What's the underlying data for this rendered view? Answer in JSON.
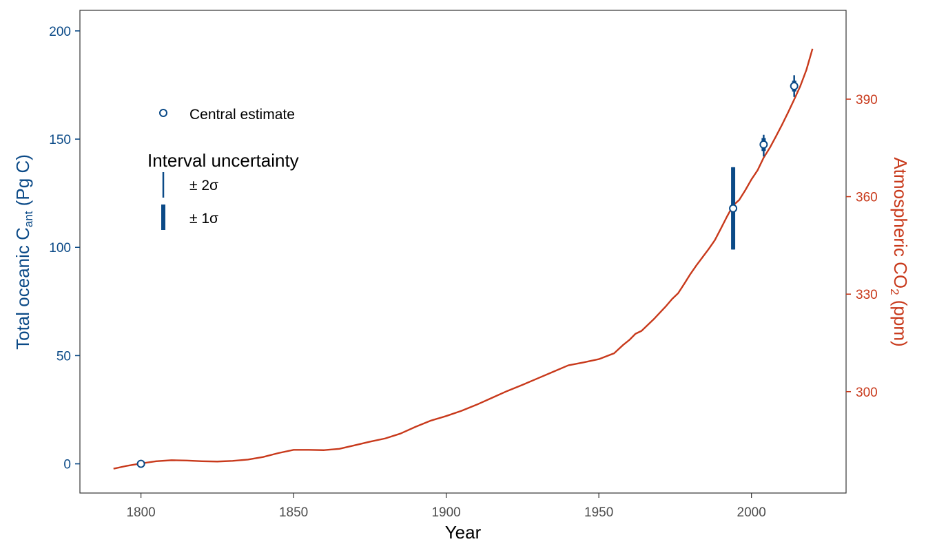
{
  "chart_data": {
    "type": "line",
    "xlabel": "Year",
    "ylabel_left_main": "Total oceanic C",
    "ylabel_left_sub": "ant",
    "ylabel_left_tail": " (Pg C)",
    "ylabel_right_main": "Atmospheric CO",
    "ylabel_right_sub": "2",
    "ylabel_right_tail": " (ppm)",
    "xlim": [
      1780,
      2031
    ],
    "x_ticks": [
      1800,
      1850,
      1900,
      1950,
      2000
    ],
    "y_left_lim": [
      -13.5,
      209.5
    ],
    "y_left_ticks": [
      0,
      50,
      100,
      150,
      200
    ],
    "y_right_ticks": [
      300,
      330,
      360,
      390
    ],
    "right_axis_mapping": {
      "co2_ppm": [
        277.8,
        410
      ],
      "left_units": [
        0,
        198.5
      ]
    },
    "colors": {
      "ocean": "#0b4a87",
      "co2": "#c8391b"
    },
    "grid": false,
    "legend": {
      "position": "top-left",
      "central_label": "Central estimate",
      "interval_title": "Interval uncertainty",
      "items": [
        {
          "label": "± 2σ",
          "style": "thin"
        },
        {
          "label": "± 1σ",
          "style": "thick"
        }
      ]
    },
    "co2_series": {
      "name": "Atmospheric CO2",
      "x": [
        1791,
        1795,
        1800,
        1805,
        1810,
        1815,
        1820,
        1825,
        1830,
        1835,
        1840,
        1845,
        1850,
        1855,
        1860,
        1865,
        1870,
        1875,
        1880,
        1885,
        1890,
        1895,
        1900,
        1905,
        1910,
        1915,
        1920,
        1925,
        1930,
        1935,
        1940,
        1945,
        1950,
        1955,
        1958,
        1960,
        1962,
        1964,
        1966,
        1968,
        1970,
        1972,
        1974,
        1976,
        1978,
        1980,
        1982,
        1984,
        1986,
        1988,
        1990,
        1992,
        1994,
        1996,
        1998,
        2000,
        2002,
        2004,
        2006,
        2008,
        2010,
        2012,
        2014,
        2016,
        2018,
        2020
      ],
      "y": [
        276.3,
        277.1,
        277.9,
        278.6,
        278.9,
        278.8,
        278.6,
        278.5,
        278.7,
        279.1,
        279.9,
        281.1,
        282.1,
        282.1,
        282.0,
        282.4,
        283.5,
        284.6,
        285.6,
        287.1,
        289.2,
        291.1,
        292.5,
        294.1,
        296.0,
        298.1,
        300.2,
        302.1,
        304.1,
        306.1,
        308.1,
        309.0,
        310.0,
        311.8,
        314.4,
        315.9,
        317.8,
        318.7,
        320.5,
        322.3,
        324.3,
        326.3,
        328.5,
        330.3,
        333.2,
        336.2,
        338.9,
        341.4,
        343.9,
        346.6,
        350.2,
        353.9,
        357.3,
        359.0,
        362.0,
        365.3,
        368.1,
        372.0,
        375.0,
        378.5,
        382.1,
        385.9,
        389.9,
        394.0,
        399.0,
        405.5
      ]
    },
    "ocean_estimates": {
      "name": "Total oceanic Cant",
      "points": [
        {
          "x": 1800,
          "y": 0,
          "sd1": [
            0,
            0
          ],
          "sd2": [
            0,
            0
          ]
        },
        {
          "x": 1994,
          "y": 118,
          "sd1": [
            99,
            137
          ],
          "sd2": [
            99,
            137
          ]
        },
        {
          "x": 2004,
          "y": 147.5,
          "sd1": [
            144.5,
            150.5
          ],
          "sd2": [
            142,
            152
          ]
        },
        {
          "x": 2014,
          "y": 174.5,
          "sd1": [
            172,
            177
          ],
          "sd2": [
            169.5,
            179.5
          ]
        }
      ]
    }
  }
}
